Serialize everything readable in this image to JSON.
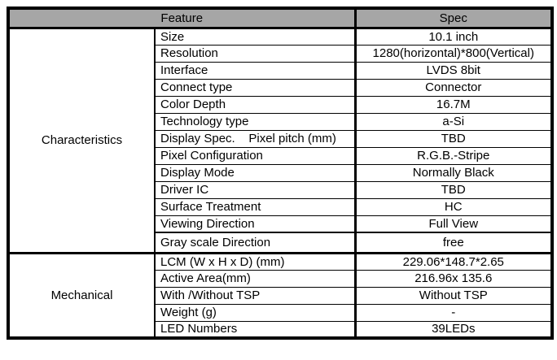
{
  "table": {
    "header": {
      "feature": "Feature",
      "spec": "Spec"
    },
    "sections": [
      {
        "group": "Characteristics",
        "rows": [
          {
            "label": "Size",
            "value": "10.1 inch"
          },
          {
            "label": "Resolution",
            "value": "1280(horizontal)*800(Vertical)"
          },
          {
            "label": "Interface",
            "value": "LVDS 8bit"
          },
          {
            "label": "Connect type",
            "value": "Connector"
          },
          {
            "label": "Color Depth",
            "value": "16.7M"
          },
          {
            "label": "Technology type",
            "value": "a-Si"
          },
          {
            "label": "Display Spec.    Pixel pitch (mm)",
            "value": "TBD"
          },
          {
            "label": "Pixel Configuration",
            "value": "R.G.B.-Stripe"
          },
          {
            "label": "Display Mode",
            "value": "Normally Black"
          },
          {
            "label": "Driver IC",
            "value": "TBD"
          },
          {
            "label": "Surface Treatment",
            "value": "HC"
          },
          {
            "label": "Viewing Direction",
            "value": "Full View"
          },
          {
            "label": "Gray scale Direction",
            "value": "free",
            "divider_above": true
          }
        ]
      },
      {
        "group": "Mechanical",
        "rows": [
          {
            "label": "LCM (W x H x D) (mm)",
            "value": "229.06*148.7*2.65"
          },
          {
            "label": "Active Area(mm)",
            "value": "216.96x 135.6"
          },
          {
            "label": "With /Without TSP",
            "value": "Without TSP"
          },
          {
            "label": "Weight (g)",
            "value": "-"
          },
          {
            "label": "LED Numbers",
            "value": "39LEDs"
          }
        ]
      }
    ],
    "colors": {
      "header_bg": "#a6a6a6",
      "border": "#000000",
      "page_bg": "#ffffff"
    }
  }
}
